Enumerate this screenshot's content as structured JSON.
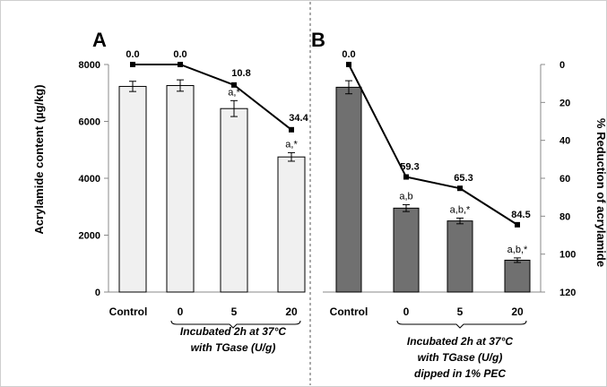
{
  "chart_data": [
    {
      "panel": "A",
      "type": "bar",
      "title": "A",
      "ylabel": "Acrylamide content (µg/kg)",
      "ylim": [
        0,
        8000
      ],
      "yticks": [
        0,
        2000,
        4000,
        6000,
        8000
      ],
      "y2label": "% Reduction of acrylamide",
      "y2lim": [
        0,
        120
      ],
      "y2inverted": true,
      "categories": [
        "Control",
        "0",
        "5",
        "20"
      ],
      "bar_values": [
        7230,
        7260,
        6450,
        4750
      ],
      "bar_errors": [
        180,
        200,
        280,
        150
      ],
      "bar_labels": [
        "",
        "",
        "a,*",
        "a,*"
      ],
      "reduction_values": [
        0.0,
        0.0,
        10.8,
        34.4
      ],
      "reduction_labels": [
        "0.0",
        "0.0",
        "10.8",
        "34.4"
      ],
      "bar_color": "#f0f0f0",
      "annotation": [
        "Incubated 2h at 37°C",
        "with TGase (U/g)"
      ]
    },
    {
      "panel": "B",
      "type": "bar",
      "title": "B",
      "ylabel": "Acrylamide content (µg/kg)",
      "ylim": [
        0,
        8000
      ],
      "y2label": "% Reduction of acrylamide",
      "y2lim": [
        0,
        120
      ],
      "y2ticks": [
        0,
        20,
        40,
        60,
        80,
        100,
        120
      ],
      "y2inverted": true,
      "categories": [
        "Control",
        "0",
        "5",
        "20"
      ],
      "bar_values": [
        7200,
        2950,
        2500,
        1120
      ],
      "bar_errors": [
        230,
        120,
        100,
        80
      ],
      "bar_labels": [
        "",
        "a,b",
        "a,b,*",
        "a,b,*"
      ],
      "reduction_values": [
        0.0,
        59.3,
        65.3,
        84.5
      ],
      "reduction_labels": [
        "0.0",
        "59.3",
        "65.3",
        "84.5"
      ],
      "bar_color": "#707070",
      "annotation": [
        "Incubated 2h at 37°C",
        "with TGase (U/g)",
        "dipped in 1% PEC"
      ]
    }
  ]
}
